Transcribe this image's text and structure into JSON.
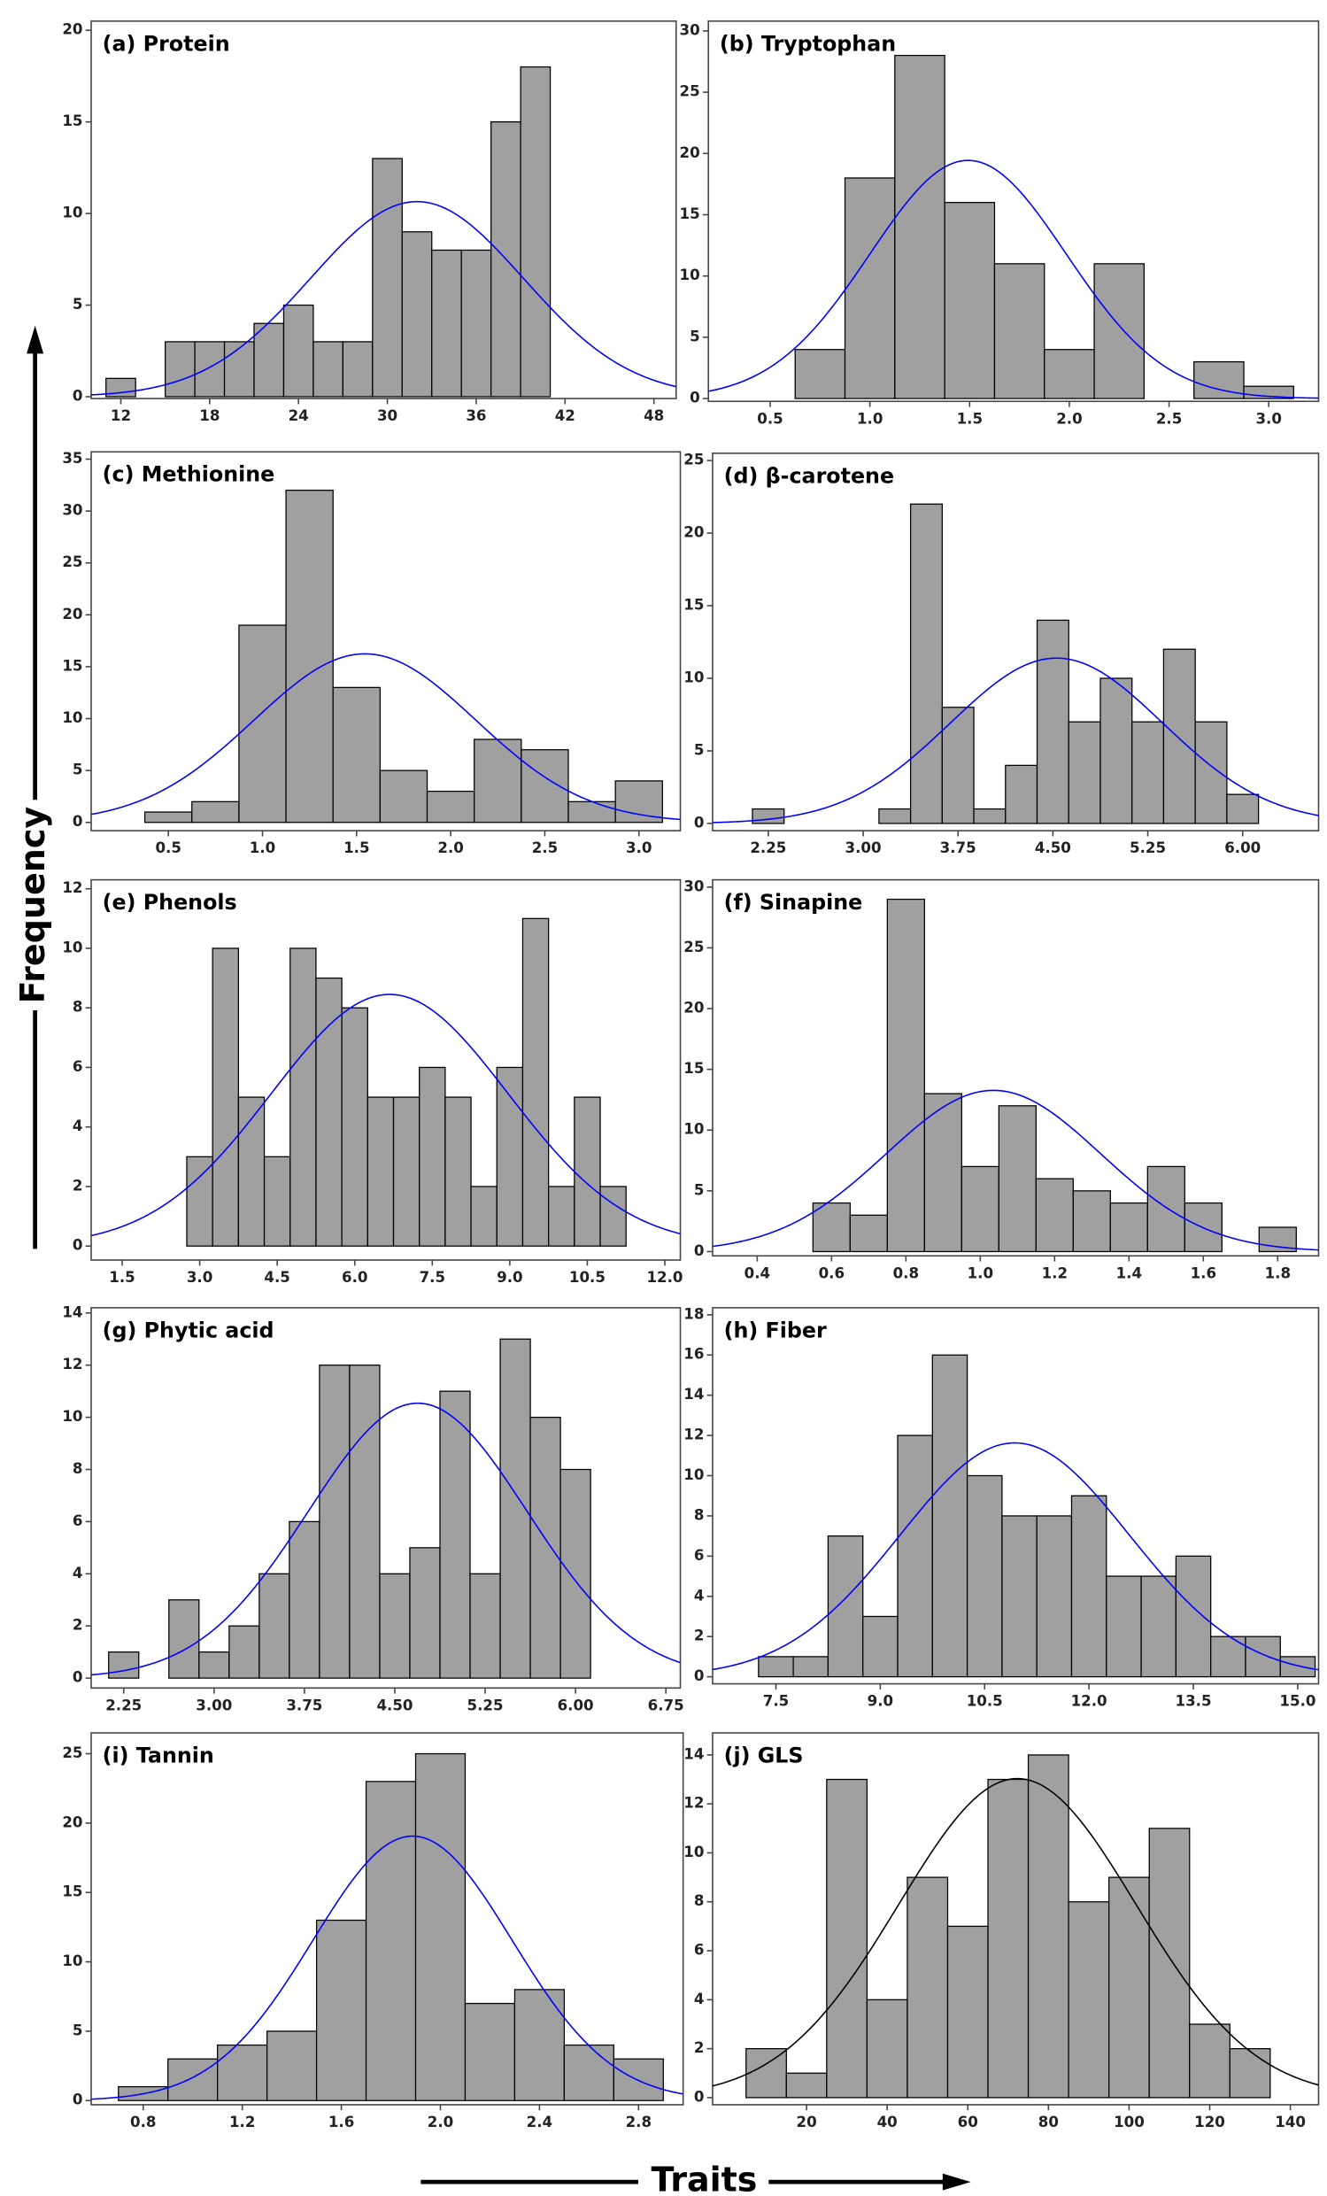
{
  "y_label": "Frequency",
  "x_label": "Traits",
  "chart_data": [
    {
      "type": "histogram",
      "title": "(a) Protein",
      "bins": [
        11,
        13,
        15,
        17,
        19,
        21,
        23,
        25,
        27,
        29,
        31,
        33,
        35,
        37,
        39,
        41
      ],
      "values": [
        1,
        0,
        3,
        3,
        3,
        4,
        5,
        3,
        3,
        13,
        9,
        8,
        8,
        15,
        18
      ],
      "color": "#a0a0a0",
      "fit": "normal",
      "fit_color": "#0000ff",
      "xlim": [
        10,
        49.5
      ],
      "ylim": [
        -0.1,
        20.5
      ],
      "xticks": [
        12,
        18,
        24,
        30,
        36,
        42,
        48
      ],
      "yticks": [
        0,
        5,
        10,
        15,
        20
      ]
    },
    {
      "type": "histogram",
      "title": "(b) Tryptophan",
      "bins": [
        0.625,
        0.875,
        1.125,
        1.375,
        1.625,
        1.875,
        2.125,
        2.375,
        2.625,
        2.875,
        3.125
      ],
      "values": [
        4,
        18,
        28,
        16,
        11,
        4,
        11,
        0,
        3,
        1
      ],
      "color": "#a0a0a0",
      "fit": "normal",
      "fit_color": "#0000ff",
      "xlim": [
        0.19,
        3.25
      ],
      "ylim": [
        -0.23,
        30.8
      ],
      "xticks": [
        0.5,
        {
          "value": 1,
          "label": "1.0"
        },
        1.5,
        {
          "value": 2,
          "label": "2.0"
        },
        2.5,
        {
          "value": 3,
          "label": "3.0"
        }
      ],
      "yticks": [
        0,
        5,
        10,
        15,
        20,
        25,
        30
      ]
    },
    {
      "type": "histogram",
      "title": "(c) Methionine",
      "bins": [
        0.375,
        0.625,
        0.875,
        1.125,
        1.375,
        1.625,
        1.875,
        2.125,
        2.375,
        2.625,
        2.875,
        3.125
      ],
      "values": [
        1,
        2,
        19,
        32,
        13,
        5,
        3,
        8,
        7,
        2,
        4
      ],
      "color": "#a0a0a0",
      "fit": "normal",
      "fit_color": "#0000ff",
      "xlim": [
        0.09,
        3.22
      ],
      "ylim": [
        -0.8,
        35.7
      ],
      "xticks": [
        0.5,
        {
          "value": 1,
          "label": "1.0"
        },
        1.5,
        {
          "value": 2,
          "label": "2.0"
        },
        2.5,
        {
          "value": 3,
          "label": "3.0"
        }
      ],
      "yticks": [
        0,
        5,
        10,
        15,
        20,
        25,
        30,
        35
      ]
    },
    {
      "type": "histogram",
      "title": "(d) β-carotene",
      "bins": [
        2.125,
        2.375,
        2.625,
        2.875,
        3.125,
        3.375,
        3.625,
        3.875,
        4.125,
        4.375,
        4.625,
        4.875,
        5.125,
        5.375,
        5.625,
        5.875,
        6.125
      ],
      "values": [
        1,
        0,
        0,
        0,
        1,
        22,
        8,
        1,
        4,
        14,
        7,
        10,
        7,
        12,
        7,
        2
      ],
      "color": "#a0a0a0",
      "fit": "normal",
      "fit_color": "#0000ff",
      "xlim": [
        1.81,
        6.6
      ],
      "ylim": [
        -0.5,
        25.5
      ],
      "xticks": [
        2.25,
        {
          "value": 3,
          "label": "3.00"
        },
        3.75,
        {
          "value": 4.5,
          "label": "4.50"
        },
        5.25,
        {
          "value": 6,
          "label": "6.00"
        }
      ],
      "yticks": [
        0,
        5,
        10,
        15,
        20,
        25
      ]
    },
    {
      "type": "histogram",
      "title": "(e) Phenols",
      "bins": [
        2.75,
        3.25,
        3.75,
        4.25,
        4.75,
        5.25,
        5.75,
        6.25,
        6.75,
        7.25,
        7.75,
        8.25,
        8.75,
        9.25,
        9.75,
        10.25,
        10.75,
        11.25
      ],
      "values": [
        3,
        10,
        5,
        3,
        10,
        9,
        8,
        5,
        5,
        6,
        5,
        2,
        6,
        11,
        2,
        5,
        2
      ],
      "color": "#a0a0a0",
      "fit": "normal",
      "fit_color": "#0000ff",
      "xlim": [
        0.9,
        12.3
      ],
      "ylim": [
        -0.47,
        12.3
      ],
      "xticks": [
        1.5,
        {
          "value": 3,
          "label": "3.0"
        },
        4.5,
        {
          "value": 6,
          "label": "6.0"
        },
        7.5,
        {
          "value": 9,
          "label": "9.0"
        },
        10.5,
        {
          "value": 12,
          "label": "12.0"
        }
      ],
      "yticks": [
        0,
        2,
        4,
        6,
        8,
        10,
        12
      ]
    },
    {
      "type": "histogram",
      "title": "(f) Sinapine",
      "bins": [
        0.55,
        0.65,
        0.75,
        0.85,
        0.95,
        1.05,
        1.15,
        1.25,
        1.35,
        1.45,
        1.55,
        1.65,
        1.75,
        1.85
      ],
      "values": [
        4,
        3,
        29,
        13,
        7,
        12,
        6,
        5,
        4,
        7,
        4,
        0,
        2
      ],
      "color": "#a0a0a0",
      "fit": "normal",
      "fit_color": "#0000ff",
      "xlim": [
        0.28,
        1.91
      ],
      "ylim": [
        -0.35,
        30.6
      ],
      "xticks": [
        0.4,
        0.6,
        0.8,
        {
          "value": 1,
          "label": "1.0"
        },
        1.2,
        1.4,
        1.6,
        1.8
      ],
      "yticks": [
        0,
        5,
        10,
        15,
        20,
        25,
        30
      ]
    },
    {
      "type": "histogram",
      "title": "(g) Phytic acid",
      "bins": [
        2.125,
        2.375,
        2.625,
        2.875,
        3.125,
        3.375,
        3.625,
        3.875,
        4.125,
        4.375,
        4.625,
        4.875,
        5.125,
        5.375,
        5.625,
        5.875,
        6.125
      ],
      "values": [
        1,
        0,
        3,
        1,
        2,
        4,
        6,
        12,
        12,
        4,
        5,
        11,
        4,
        13,
        10,
        8
      ],
      "color": "#a0a0a0",
      "fit": "normal",
      "fit_color": "#0000ff",
      "xlim": [
        1.98,
        6.87
      ],
      "ylim": [
        -0.38,
        14.2
      ],
      "xticks": [
        2.25,
        {
          "value": 3,
          "label": "3.00"
        },
        3.75,
        {
          "value": 4.5,
          "label": "4.50"
        },
        5.25,
        {
          "value": 6,
          "label": "6.00"
        },
        6.75
      ],
      "yticks": [
        0,
        2,
        4,
        6,
        8,
        10,
        12,
        14
      ]
    },
    {
      "type": "histogram",
      "title": "(h) Fiber",
      "bins": [
        7.25,
        7.75,
        8.25,
        8.75,
        9.25,
        9.75,
        10.25,
        10.75,
        11.25,
        11.75,
        12.25,
        12.75,
        13.25,
        13.75,
        14.25,
        14.75,
        15.25
      ],
      "values": [
        1,
        1,
        7,
        3,
        12,
        16,
        10,
        8,
        8,
        9,
        5,
        5,
        6,
        2,
        2,
        1
      ],
      "color": "#a0a0a0",
      "fit": "normal",
      "fit_color": "#0000ff",
      "xlim": [
        6.59,
        15.3
      ],
      "ylim": [
        -0.35,
        18.35
      ],
      "xticks": [
        7.5,
        {
          "value": 9,
          "label": "9.0"
        },
        10.5,
        {
          "value": 12,
          "label": "12.0"
        },
        13.5,
        {
          "value": 15,
          "label": "15.0"
        }
      ],
      "yticks": [
        0,
        2,
        4,
        6,
        8,
        10,
        12,
        14,
        16,
        18
      ]
    },
    {
      "type": "histogram",
      "title": "(i) Tannin",
      "bins": [
        0.7,
        0.9,
        1.1,
        1.3,
        1.5,
        1.7,
        1.9,
        2.1,
        2.3,
        2.5,
        2.7,
        2.9
      ],
      "values": [
        1,
        3,
        4,
        5,
        13,
        23,
        25,
        7,
        8,
        4,
        3
      ],
      "color": "#a0a0a0",
      "fit": "normal",
      "fit_color": "#0000ff",
      "xlim": [
        0.59,
        2.98
      ],
      "ylim": [
        -0.3,
        26.5
      ],
      "xticks": [
        0.8,
        1.2,
        1.6,
        {
          "value": 2,
          "label": "2.0"
        },
        2.4,
        2.8
      ],
      "yticks": [
        0,
        5,
        10,
        15,
        20,
        25
      ]
    },
    {
      "type": "histogram",
      "title": "(j) GLS",
      "bins": [
        5,
        15,
        25,
        35,
        45,
        55,
        65,
        75,
        85,
        95,
        105,
        115,
        125,
        135
      ],
      "values": [
        2,
        1,
        13,
        4,
        9,
        7,
        13,
        14,
        8,
        9,
        11,
        3,
        2
      ],
      "color": "#a0a0a0",
      "fit": "normal",
      "fit_color": "#000000",
      "xlim": [
        -3.3,
        147
      ],
      "ylim": [
        -0.29,
        14.9
      ],
      "xticks": [
        20,
        40,
        60,
        80,
        100,
        120,
        140
      ],
      "yticks": [
        0,
        2,
        4,
        6,
        8,
        10,
        12,
        14
      ]
    }
  ]
}
